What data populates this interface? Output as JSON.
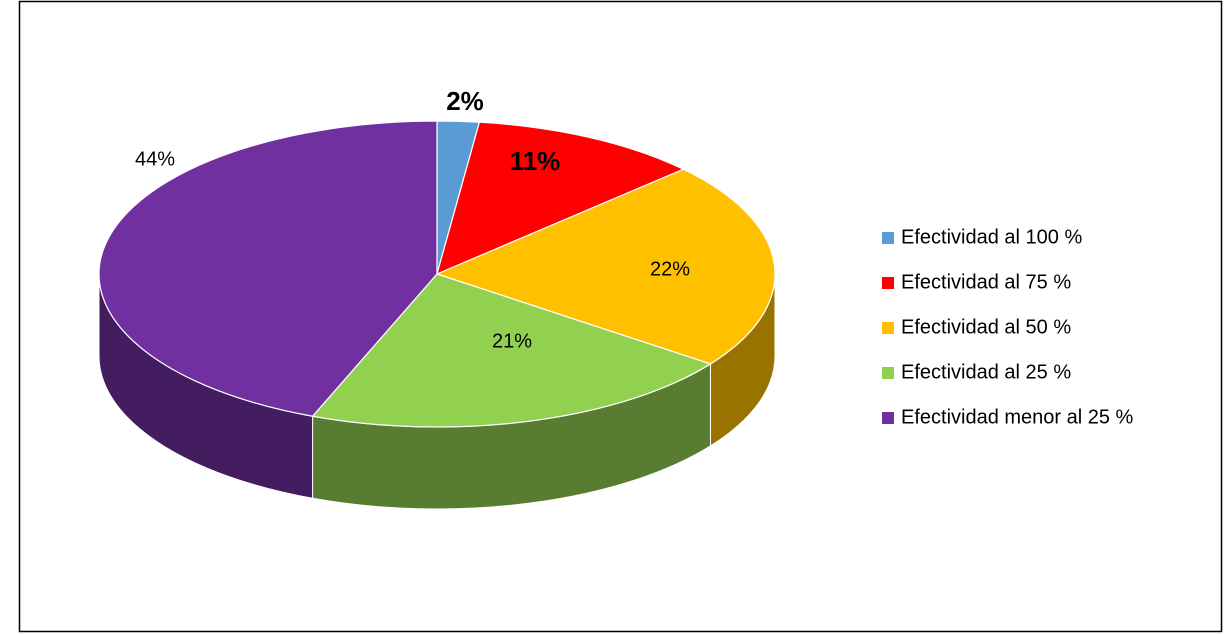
{
  "chart_data": {
    "type": "pie",
    "categories": [
      "Efectividad al 100 %",
      "Efectividad al 75 %",
      "Efectividad al 50 %",
      "Efectividad al 25 %",
      "Efectividad menor al 25 %"
    ],
    "values": [
      2,
      11,
      22,
      21,
      44
    ],
    "value_labels": [
      "2%",
      "11%",
      "22%",
      "21%",
      "44%"
    ],
    "colors": [
      "#5b9bd5",
      "#ff0000",
      "#ffc000",
      "#92d050",
      "#7030a0"
    ],
    "legend": "right"
  }
}
